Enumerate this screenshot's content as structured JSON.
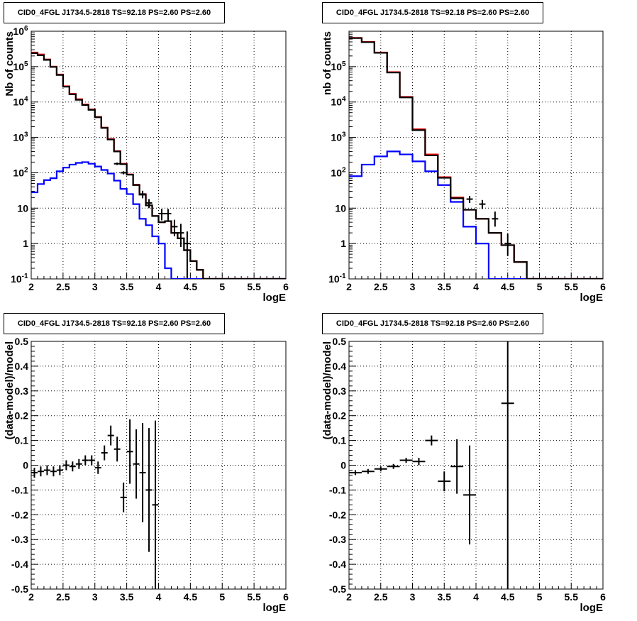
{
  "chart_data": [
    {
      "id": "tl",
      "type": "histogram",
      "title": "CID0_4FGL J1734.5-2818 TS=92.18 PS=2.60 PS=2.60",
      "xlabel": "logE",
      "ylabel": "Nb of counts",
      "xlim": [
        2,
        6
      ],
      "ylim": [
        0.1,
        1000000
      ],
      "log_y": true,
      "grid": true,
      "x_ticks": [
        "2",
        "2.5",
        "3",
        "3.5",
        "4",
        "4.5",
        "5",
        "5.5",
        "6"
      ],
      "y_ticks": [
        "10^-1",
        "1",
        "10",
        "10^2",
        "10^3",
        "10^4",
        "10^5",
        "10^6"
      ],
      "bin_edges": [
        2.0,
        2.1,
        2.2,
        2.3,
        2.4,
        2.5,
        2.6,
        2.7,
        2.8,
        2.9,
        3.0,
        3.1,
        3.2,
        3.3,
        3.4,
        3.5,
        3.6,
        3.7,
        3.8,
        3.9,
        4.0,
        4.1,
        4.2,
        4.3,
        4.4,
        4.5,
        4.6,
        4.7,
        4.8,
        4.9,
        5.0,
        5.1,
        5.2,
        5.3,
        5.4,
        5.5,
        5.6,
        5.7,
        5.8,
        5.9,
        6.0
      ],
      "series": [
        {
          "name": "",
          "color": "#0000ff",
          "kind": "step",
          "values": [
            28,
            48,
            62,
            70,
            110,
            140,
            170,
            190,
            200,
            180,
            150,
            120,
            95,
            60,
            35,
            25,
            13,
            5,
            3.3,
            1.6,
            1,
            0.2,
            0.1,
            0.1,
            0.1,
            0.1,
            0.1,
            0.1,
            0.1,
            0.1,
            0.1,
            0.1,
            0.1,
            0.1,
            0.1,
            0.1,
            0.1,
            0.1,
            0.1,
            0.1
          ]
        },
        {
          "name": "",
          "color": "#ff0000",
          "kind": "step",
          "values": [
            250000,
            220000,
            160000,
            100000,
            60000,
            28000,
            17000,
            12000,
            8500,
            6200,
            3800,
            1900,
            900,
            410,
            180,
            90,
            46,
            25,
            12,
            6,
            4,
            4.3,
            2,
            1.4,
            0.65,
            0.32,
            0.18,
            0.1,
            0.1,
            0.1,
            0.1,
            0.1,
            0.1,
            0.1,
            0.1,
            0.1,
            0.1,
            0.1,
            0.1,
            0.1
          ]
        },
        {
          "name": "",
          "color": "#000000",
          "kind": "step",
          "values": [
            240000,
            210000,
            155000,
            98000,
            58000,
            27000,
            16500,
            11500,
            8200,
            6000,
            3700,
            1850,
            870,
            400,
            175,
            88,
            45,
            24,
            12,
            6,
            4,
            4.3,
            2,
            1.4,
            0.65,
            0.32,
            0.18,
            0.1,
            0.1,
            0.1,
            0.1,
            0.1,
            0.1,
            0.1,
            0.1,
            0.1,
            0.1,
            0.1,
            0.1,
            0.1
          ]
        },
        {
          "name": "",
          "color": "#000000",
          "kind": "points",
          "x": [
            3.35,
            3.45,
            3.75,
            3.85,
            4.05,
            4.15,
            4.25,
            4.35,
            4.45
          ],
          "values": [
            180,
            100,
            25,
            14,
            7,
            7,
            3,
            2,
            1
          ],
          "err_low": [
            165,
            90,
            19,
            10,
            4.5,
            4.5,
            1.6,
            0.8,
            0.05
          ],
          "err_high": [
            195,
            110,
            31,
            18,
            9.5,
            9.5,
            4.7,
            3.6,
            2.2
          ]
        }
      ]
    },
    {
      "id": "tr",
      "type": "histogram",
      "title": "CID0_4FGL J1734.5-2818 TS=92.18 PS=2.60 PS=2.60",
      "xlabel": "logE",
      "ylabel": "nb of counts",
      "xlim": [
        2,
        6
      ],
      "ylim": [
        0.1,
        1000000
      ],
      "log_y": true,
      "grid": true,
      "x_ticks": [
        "2",
        "2.5",
        "3",
        "3.5",
        "4",
        "4.5",
        "5",
        "5.5",
        "6"
      ],
      "y_ticks": [
        "10^-1",
        "1",
        "10",
        "10^2",
        "10^3",
        "10^4",
        "10^5"
      ],
      "bin_edges": [
        2.0,
        2.2,
        2.4,
        2.6,
        2.8,
        3.0,
        3.2,
        3.4,
        3.6,
        3.8,
        4.0,
        4.2,
        4.4,
        4.6,
        4.8,
        5.0,
        5.2,
        5.4,
        5.6,
        5.8,
        6.0
      ],
      "series": [
        {
          "name": "",
          "color": "#0000ff",
          "kind": "step",
          "values": [
            80,
            170,
            290,
            400,
            330,
            210,
            110,
            45,
            15,
            3,
            1,
            0.1,
            0.1,
            0.1,
            0.1,
            0.1,
            0.1,
            0.1,
            0.1,
            0.1
          ]
        },
        {
          "name": "",
          "color": "#ff0000",
          "kind": "step",
          "values": [
            650000,
            500000,
            250000,
            70000,
            14000,
            1700,
            330,
            75,
            20,
            9,
            5,
            2,
            0.9,
            0.3,
            0.1,
            0.1,
            0.1,
            0.1,
            0.1,
            0.1
          ]
        },
        {
          "name": "",
          "color": "#000000",
          "kind": "step",
          "values": [
            640000,
            490000,
            245000,
            68000,
            13500,
            1600,
            310,
            72,
            19,
            9,
            5,
            2,
            0.9,
            0.3,
            0.1,
            0.1,
            0.1,
            0.1,
            0.1,
            0.1
          ]
        },
        {
          "name": "",
          "color": "#000000",
          "kind": "points",
          "x": [
            3.9,
            4.1,
            4.3,
            4.5
          ],
          "values": [
            18,
            13,
            5,
            1
          ],
          "err_low": [
            14,
            9.5,
            3,
            0.45
          ],
          "err_high": [
            22,
            17,
            8,
            1.9
          ]
        }
      ]
    },
    {
      "id": "bl",
      "type": "scatter",
      "title": "CID0_4FGL J1734.5-2818 TS=92.18 PS=2.60 PS=2.60",
      "xlabel": "logE",
      "ylabel": "(data-model)/model",
      "xlim": [
        2,
        6
      ],
      "ylim": [
        -0.5,
        0.5
      ],
      "log_y": false,
      "grid": true,
      "x_ticks": [
        "2",
        "2.5",
        "3",
        "3.5",
        "4",
        "4.5",
        "5",
        "5.5",
        "6"
      ],
      "y_ticks": [
        "-0.5",
        "-0.4",
        "-0.3",
        "-0.2",
        "-0.1",
        "0",
        "0.1",
        "0.2",
        "0.3",
        "0.4",
        "0.5"
      ],
      "series": [
        {
          "name": "",
          "color": "#000000",
          "kind": "points",
          "xerr": 0.05,
          "x": [
            2.05,
            2.15,
            2.25,
            2.35,
            2.45,
            2.55,
            2.65,
            2.75,
            2.85,
            2.95,
            3.05,
            3.15,
            3.25,
            3.35,
            3.45,
            3.55,
            3.65,
            3.75,
            3.85,
            3.95
          ],
          "values": [
            -0.03,
            -0.025,
            -0.02,
            -0.025,
            -0.02,
            0,
            -0.005,
            0.005,
            0.02,
            0.02,
            -0.01,
            0.05,
            0.12,
            0.065,
            -0.13,
            0.055,
            0.005,
            -0.03,
            -0.1,
            -0.16
          ],
          "err": [
            0.02,
            0.02,
            0.02,
            0.02,
            0.02,
            0.02,
            0.02,
            0.02,
            0.02,
            0.02,
            0.025,
            0.03,
            0.04,
            0.05,
            0.06,
            0.13,
            0.14,
            0.2,
            0.25,
            0.34
          ]
        }
      ]
    },
    {
      "id": "br",
      "type": "scatter",
      "title": "CID0_4FGL J1734.5-2818 TS=92.18 PS=2.60 PS=2.60",
      "xlabel": "logE",
      "ylabel": "(data-model)/model",
      "xlim": [
        2,
        6
      ],
      "ylim": [
        -0.5,
        0.5
      ],
      "log_y": false,
      "grid": true,
      "x_ticks": [
        "2",
        "2.5",
        "3",
        "3.5",
        "4",
        "4.5",
        "5",
        "5.5",
        "6"
      ],
      "y_ticks": [
        "-0.5",
        "-0.4",
        "-0.3",
        "-0.2",
        "-0.1",
        "0",
        "0.1",
        "0.2",
        "0.3",
        "0.4",
        "0.5"
      ],
      "series": [
        {
          "name": "",
          "color": "#000000",
          "kind": "points",
          "xerr": 0.1,
          "x": [
            2.1,
            2.3,
            2.5,
            2.7,
            2.9,
            3.1,
            3.3,
            3.5,
            3.7,
            3.9,
            4.5
          ],
          "values": [
            -0.03,
            -0.025,
            -0.015,
            -0.005,
            0.02,
            0.015,
            0.1,
            -0.065,
            -0.005,
            -0.12,
            0.25
          ],
          "err": [
            0.01,
            0.01,
            0.01,
            0.01,
            0.01,
            0.015,
            0.02,
            0.04,
            0.11,
            0.2,
            0.8
          ]
        }
      ]
    }
  ]
}
